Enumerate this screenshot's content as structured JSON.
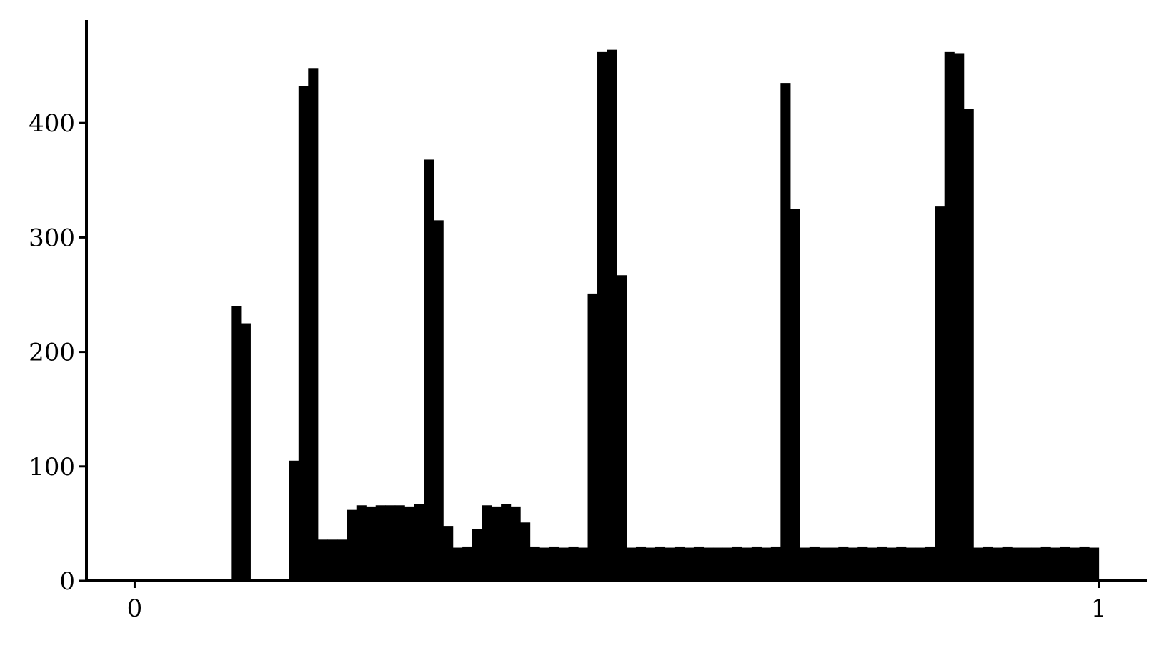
{
  "chart_data": {
    "type": "bar",
    "title": "",
    "xlabel": "",
    "ylabel": "",
    "xlim": [
      -0.05,
      1.05
    ],
    "ylim": [
      0,
      490
    ],
    "x_ticks": [
      {
        "value": 0,
        "label": "0"
      },
      {
        "value": 1,
        "label": "1"
      }
    ],
    "y_ticks": [
      {
        "value": 0,
        "label": "0"
      },
      {
        "value": 100,
        "label": "100"
      },
      {
        "value": 200,
        "label": "200"
      },
      {
        "value": 300,
        "label": "300"
      },
      {
        "value": 400,
        "label": "400"
      }
    ],
    "bin_start": 0,
    "bin_width": 0.01,
    "values": [
      0,
      0,
      0,
      0,
      0,
      0,
      0,
      0,
      0,
      0,
      240,
      225,
      0,
      0,
      0,
      0,
      105,
      432,
      448,
      36,
      36,
      36,
      62,
      66,
      65,
      66,
      66,
      66,
      65,
      67,
      368,
      315,
      48,
      29,
      30,
      45,
      66,
      65,
      67,
      65,
      51,
      30,
      29,
      30,
      29,
      30,
      29,
      251,
      462,
      464,
      267,
      29,
      30,
      29,
      30,
      29,
      30,
      29,
      30,
      29,
      29,
      29,
      30,
      29,
      30,
      29,
      30,
      435,
      325,
      29,
      30,
      29,
      29,
      30,
      29,
      30,
      29,
      30,
      29,
      30,
      29,
      29,
      30,
      327,
      462,
      461,
      412,
      29,
      30,
      29,
      30,
      29,
      29,
      29,
      30,
      29,
      30,
      29,
      30,
      29
    ],
    "grid": false,
    "legend": "none",
    "color": "#000000"
  }
}
